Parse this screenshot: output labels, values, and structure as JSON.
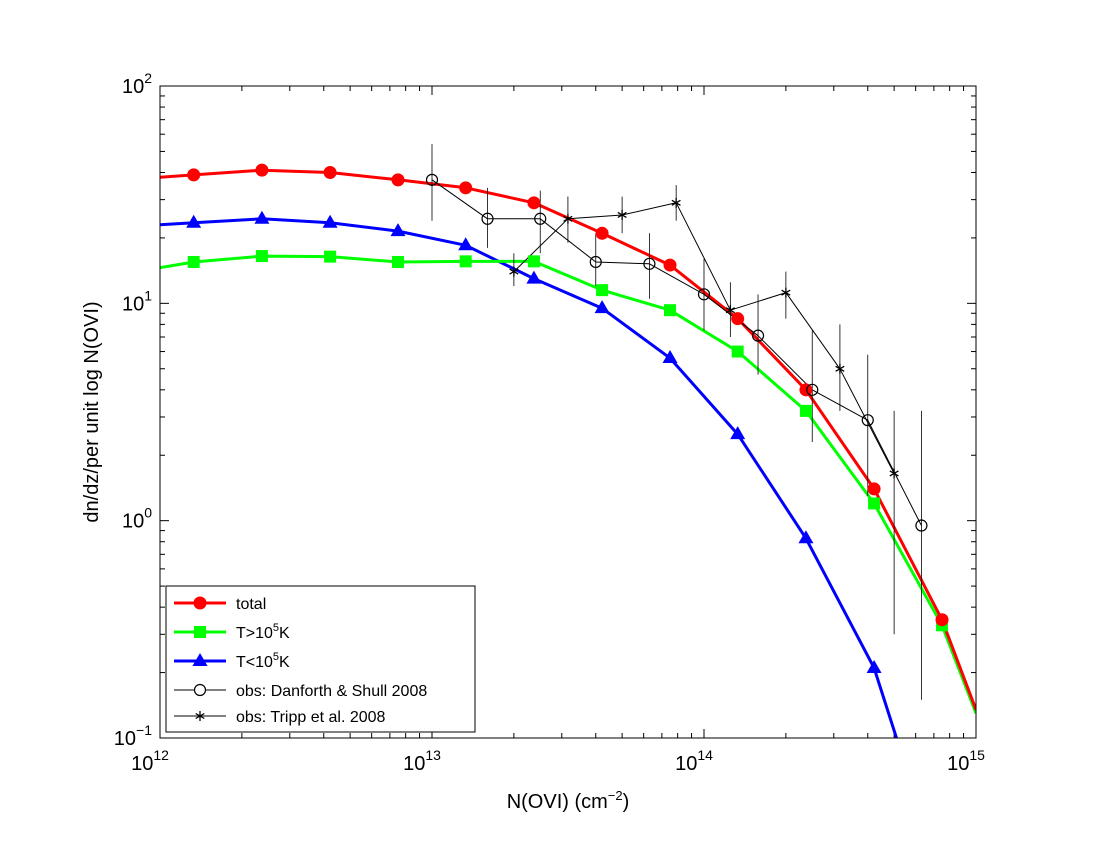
{
  "chart_data": {
    "type": "line",
    "title": "",
    "xlabel": "N(OVI) (cm",
    "xlabel_sup": "−2",
    "xlabel_close": ")",
    "ylabel": "dn/dz/per unit log N(OVI)",
    "xscale": "log",
    "yscale": "log",
    "xlim": [
      1000000000000.0,
      1000000000000000.0
    ],
    "ylim": [
      0.1,
      100
    ],
    "x_ticks": [
      {
        "base": "10",
        "exp": "12",
        "value": 1000000000000.0
      },
      {
        "base": "10",
        "exp": "13",
        "value": 10000000000000.0
      },
      {
        "base": "10",
        "exp": "14",
        "value": 100000000000000.0
      },
      {
        "base": "10",
        "exp": "15",
        "value": 1000000000000000.0
      }
    ],
    "y_ticks": [
      {
        "base": "10",
        "exp": "−1",
        "value": 0.1
      },
      {
        "base": "10",
        "exp": "0",
        "value": 1
      },
      {
        "base": "10",
        "exp": "1",
        "value": 10
      },
      {
        "base": "10",
        "exp": "2",
        "value": 100
      }
    ],
    "legend_position": "bottom-left",
    "series": [
      {
        "name": "total",
        "color": "#ff0000",
        "marker": "circle",
        "line_x": [
          1000000000000.0,
          1330000000000.0,
          2370000000000.0,
          4220000000000.0,
          7500000000000.0,
          13300000000000.0,
          23700000000000.0,
          42200000000000.0,
          75000000000000.0,
          133000000000000.0,
          237000000000000.0,
          422000000000000.0,
          750000000000000.0,
          1000000000000000.0
        ],
        "line_y": [
          38,
          39,
          41,
          40,
          37,
          34,
          29,
          21,
          15,
          8.5,
          4.0,
          1.4,
          0.35,
          0.135
        ],
        "marker_x": [
          1330000000000.0,
          2370000000000.0,
          4220000000000.0,
          7500000000000.0,
          13300000000000.0,
          23700000000000.0,
          42200000000000.0,
          75000000000000.0,
          133000000000000.0,
          237000000000000.0,
          422000000000000.0,
          750000000000000.0
        ],
        "marker_y": [
          39,
          41,
          40,
          37,
          34,
          29,
          21,
          15,
          8.5,
          4.0,
          1.4,
          0.35
        ]
      },
      {
        "name": "T>10^5K",
        "label_prefix": "T>10",
        "label_sup": "5",
        "label_suffix": "K",
        "color": "#00ff00",
        "marker": "square",
        "line_x": [
          1000000000000.0,
          1330000000000.0,
          2370000000000.0,
          4220000000000.0,
          7500000000000.0,
          13300000000000.0,
          23700000000000.0,
          42200000000000.0,
          75000000000000.0,
          133000000000000.0,
          237000000000000.0,
          422000000000000.0,
          750000000000000.0,
          1000000000000000.0
        ],
        "line_y": [
          14.6,
          15.5,
          16.5,
          16.4,
          15.5,
          15.6,
          15.6,
          11.5,
          9.3,
          6.0,
          3.2,
          1.2,
          0.33,
          0.13
        ],
        "marker_x": [
          1330000000000.0,
          2370000000000.0,
          4220000000000.0,
          7500000000000.0,
          13300000000000.0,
          23700000000000.0,
          42200000000000.0,
          75000000000000.0,
          133000000000000.0,
          237000000000000.0,
          422000000000000.0,
          750000000000000.0
        ],
        "marker_y": [
          15.5,
          16.5,
          16.4,
          15.5,
          15.6,
          15.6,
          11.5,
          9.3,
          6.0,
          3.2,
          1.2,
          0.33
        ]
      },
      {
        "name": "T<10^5K",
        "label_prefix": "T<10",
        "label_sup": "5",
        "label_suffix": "K",
        "color": "#0000ff",
        "marker": "triangle",
        "line_x": [
          1000000000000.0,
          1330000000000.0,
          2370000000000.0,
          4220000000000.0,
          7500000000000.0,
          13300000000000.0,
          23700000000000.0,
          42200000000000.0,
          75000000000000.0,
          133000000000000.0,
          237000000000000.0,
          422000000000000.0,
          510000000000000.0
        ],
        "line_y": [
          23,
          23.5,
          24.5,
          23.5,
          21.5,
          18.5,
          13,
          9.5,
          5.6,
          2.5,
          0.83,
          0.21,
          0.1
        ],
        "marker_x": [
          1330000000000.0,
          2370000000000.0,
          4220000000000.0,
          7500000000000.0,
          13300000000000.0,
          23700000000000.0,
          42200000000000.0,
          75000000000000.0,
          133000000000000.0,
          237000000000000.0,
          422000000000000.0
        ],
        "marker_y": [
          23.5,
          24.5,
          23.5,
          21.5,
          18.5,
          13,
          9.5,
          5.6,
          2.5,
          0.83,
          0.21
        ]
      },
      {
        "name": "obs: Danforth & Shull 2008",
        "color": "#000000",
        "marker": "open-circle",
        "x": [
          10000000000000.0,
          16000000000000.0,
          25000000000000.0,
          40000000000000.0,
          63000000000000.0,
          100000000000000.0,
          158000000000000.0,
          250000000000000.0,
          400000000000000.0,
          630000000000000.0
        ],
        "y": [
          37,
          24.5,
          24.5,
          15.5,
          15.2,
          11,
          7.1,
          4.0,
          2.9,
          0.95
        ],
        "err_low": [
          24,
          18,
          17,
          12,
          10.5,
          7.5,
          4.7,
          2.3,
          1.3,
          0.15
        ],
        "err_high": [
          54,
          34,
          33,
          21,
          21,
          16,
          11,
          7.5,
          5.8,
          3.2
        ]
      },
      {
        "name": "obs: Tripp et al. 2008",
        "color": "#000000",
        "marker": "star",
        "x": [
          20000000000000.0,
          31600000000000.0,
          50000000000000.0,
          79000000000000.0,
          125000000000000.0,
          200000000000000.0,
          316000000000000.0,
          500000000000000.0
        ],
        "y": [
          14,
          24.5,
          25.5,
          29,
          9.3,
          11.2,
          5.0,
          1.65
        ],
        "err_low": [
          12,
          19,
          21,
          24,
          7,
          8.5,
          3.2,
          0.3
        ],
        "err_high": [
          17,
          31,
          31,
          35,
          12.5,
          14,
          8,
          3.2
        ]
      }
    ]
  }
}
